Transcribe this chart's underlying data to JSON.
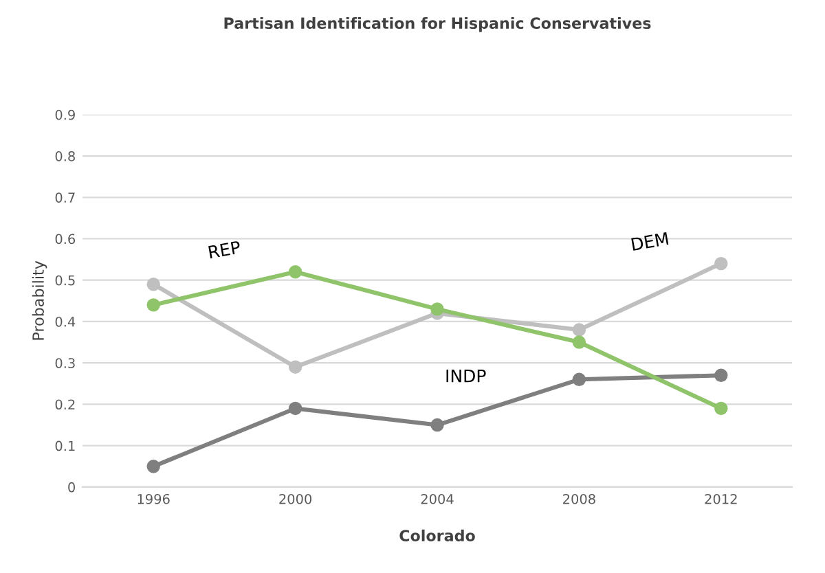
{
  "chart_data": {
    "type": "line",
    "title": "Partisan Identification for Hispanic Conservatives",
    "xlabel": "Colorado",
    "ylabel": "Probability",
    "categories": [
      "1996",
      "2000",
      "2004",
      "2008",
      "2012"
    ],
    "series": [
      {
        "name": "REP",
        "color": "#8fc46a",
        "values": [
          0.44,
          0.52,
          0.43,
          0.35,
          0.19
        ]
      },
      {
        "name": "DEM",
        "color": "#bfbfbf",
        "values": [
          0.49,
          0.29,
          0.42,
          0.38,
          0.54
        ]
      },
      {
        "name": "INDP",
        "color": "#7f7f7f",
        "values": [
          0.05,
          0.19,
          0.15,
          0.26,
          0.27
        ]
      }
    ],
    "ylim": [
      0,
      0.9
    ],
    "yticks": [
      0,
      0.1,
      0.2,
      0.3,
      0.4,
      0.5,
      0.6,
      0.7,
      0.8,
      0.9
    ],
    "grid": "y",
    "marker": "circle",
    "line_style": "solid",
    "legend": false
  }
}
